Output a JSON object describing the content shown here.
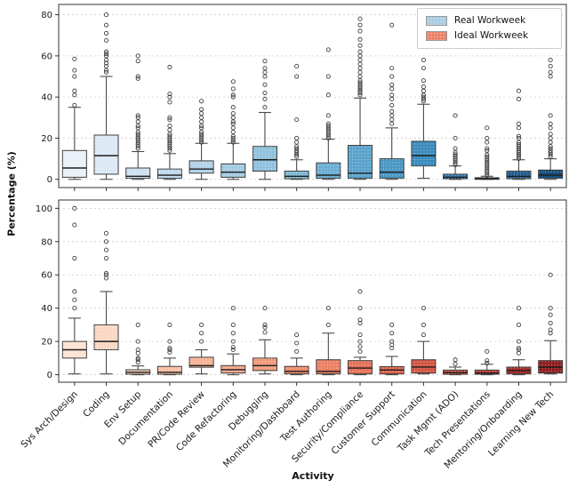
{
  "chart_data": {
    "type": "boxplot",
    "xlabel": "Activity",
    "ylabel": "Percentage (%)",
    "legend": [
      {
        "label": "Real Workweek",
        "color": "#a9cde3"
      },
      {
        "label": "Ideal Workweek",
        "color": "#ee8268"
      }
    ],
    "categories": [
      "Sys Arch/Design",
      "Coding",
      "Env Setup",
      "Documentation",
      "PR/Code Review",
      "Code Refactoring",
      "Debugging",
      "Monitoring/Dashboard",
      "Test Authoring",
      "Security/Compliance",
      "Customer Support",
      "Communication",
      "Task Mgmt (ADO)",
      "Tech Presentations",
      "Mentoring/Onboarding",
      "Learning New Tech"
    ],
    "grid": "dashed-horizontal",
    "legend_position": "top-right",
    "panels": [
      {
        "name": "real-workweek",
        "ylim": [
          -4,
          85
        ],
        "yticks": [
          0,
          20,
          40,
          60,
          80
        ],
        "boxes": [
          {
            "color": "#e9f0f8",
            "whislo": 0,
            "q1": 1,
            "med": 5.5,
            "q3": 14,
            "whishi": 35,
            "fliers": [
              36,
              41,
              43,
              50,
              53,
              58.5
            ]
          },
          {
            "color": "#dce9f5",
            "whislo": 0,
            "q1": 2.5,
            "med": 11.5,
            "q3": 21.5,
            "whishi": 50,
            "fliers": [
              52,
              53,
              55,
              56.5,
              58,
              60,
              61,
              62,
              67.5,
              71,
              75,
              80
            ]
          },
          {
            "color": "#cfe1f1",
            "whislo": 0,
            "q1": 0.5,
            "med": 1.5,
            "q3": 5.5,
            "whishi": 13.5,
            "fliers": [
              15,
              16,
              17,
              18,
              19,
              20,
              21,
              22,
              23,
              25,
              26,
              28,
              30,
              31,
              49,
              50,
              57.5,
              60
            ]
          },
          {
            "color": "#c2d9ec",
            "whislo": 0,
            "q1": 0.5,
            "med": 2,
            "q3": 5,
            "whishi": 12.5,
            "fliers": [
              14,
              15,
              16,
              17,
              18,
              19,
              20,
              21,
              22,
              24,
              26,
              29,
              30,
              37.5,
              40,
              41.5,
              54.5
            ]
          },
          {
            "color": "#b3d2e8",
            "whislo": 0,
            "q1": 3,
            "med": 5,
            "q3": 9,
            "whishi": 17.5,
            "fliers": [
              18,
              19,
              20,
              21,
              22,
              23,
              25,
              26,
              28,
              30,
              32,
              34,
              38
            ]
          },
          {
            "color": "#a3cae3",
            "whislo": 0,
            "q1": 1,
            "med": 3.5,
            "q3": 7.5,
            "whishi": 17.5,
            "fliers": [
              18,
              19,
              20,
              21,
              23,
              25,
              27,
              28,
              30,
              32,
              35,
              40,
              41,
              44,
              47.5
            ]
          },
          {
            "color": "#92c1dd",
            "whislo": 0,
            "q1": 4,
            "med": 9.5,
            "q3": 16,
            "whishi": 32.5,
            "fliers": [
              35,
              39,
              42,
              46,
              50,
              52,
              54,
              57.5
            ]
          },
          {
            "color": "#7fb8d8",
            "whislo": 0,
            "q1": 0.3,
            "med": 1.5,
            "q3": 4,
            "whishi": 9.5,
            "fliers": [
              11,
              12,
              13,
              14,
              15,
              16,
              18,
              20,
              29,
              50,
              55
            ]
          },
          {
            "color": "#6caed3",
            "whislo": 0,
            "q1": 0.5,
            "med": 2,
            "q3": 8,
            "whishi": 19.5,
            "fliers": [
              20,
              21,
              22,
              23,
              24,
              25,
              26,
              27,
              31,
              41,
              50,
              63
            ]
          },
          {
            "color": "#5aa3cc",
            "whislo": 0,
            "q1": 0.5,
            "med": 3,
            "q3": 16.5,
            "whishi": 39.5,
            "fliers": [
              41,
              42,
              43,
              44,
              45,
              46,
              47,
              48,
              50,
              52,
              54,
              56,
              58,
              60,
              62,
              65,
              68,
              72,
              75,
              78
            ]
          },
          {
            "color": "#4997c4",
            "whislo": 0,
            "q1": 0.5,
            "med": 3.5,
            "q3": 10,
            "whishi": 25,
            "fliers": [
              27,
              29,
              31,
              33,
              36,
              39,
              41,
              44,
              46,
              50,
              54,
              75
            ]
          },
          {
            "color": "#3b8bbc",
            "whislo": 0.5,
            "q1": 6.5,
            "med": 11.5,
            "q3": 18.5,
            "whishi": 36.5,
            "fliers": [
              38,
              39,
              40,
              41,
              43,
              45,
              48,
              54,
              58
            ]
          },
          {
            "color": "#2e7ab0",
            "whislo": 0,
            "q1": 0.3,
            "med": 1,
            "q3": 2.5,
            "whishi": 6.5,
            "fliers": [
              7,
              8,
              9,
              10,
              11,
              12,
              13,
              15,
              20,
              31
            ]
          },
          {
            "color": "#256da4",
            "whislo": 0,
            "q1": 0,
            "med": 0.3,
            "q3": 0.8,
            "whishi": 1.5,
            "fliers": [
              2,
              3,
              4,
              5,
              6,
              7,
              8,
              9,
              10,
              11,
              12,
              14,
              15,
              18,
              20,
              25
            ]
          },
          {
            "color": "#1f5f95",
            "whislo": 0,
            "q1": 0.3,
            "med": 1.5,
            "q3": 4,
            "whishi": 9.5,
            "fliers": [
              10,
              11,
              12,
              13,
              14,
              15,
              16,
              17,
              18,
              20,
              21,
              25,
              27,
              39,
              43
            ]
          },
          {
            "color": "#194e7e",
            "whislo": 0,
            "q1": 0.5,
            "med": 2,
            "q3": 4.5,
            "whishi": 10,
            "fliers": [
              11,
              12,
              13,
              14,
              15,
              16,
              18,
              20,
              22,
              25,
              27,
              31,
              50,
              52,
              55,
              58
            ]
          }
        ]
      },
      {
        "name": "ideal-workweek",
        "ylim": [
          -4.5,
          105
        ],
        "yticks": [
          0,
          20,
          40,
          60,
          80,
          100
        ],
        "boxes": [
          {
            "color": "#fbe3d4",
            "whislo": 0.5,
            "q1": 10,
            "med": 15,
            "q3": 20,
            "whishi": 34,
            "fliers": [
              40,
              45,
              50,
              70,
              90,
              100
            ]
          },
          {
            "color": "#fad7c4",
            "whislo": 0.5,
            "q1": 15,
            "med": 20,
            "q3": 30,
            "whishi": 50,
            "fliers": [
              58,
              60,
              61,
              70,
              75,
              80,
              85
            ]
          },
          {
            "color": "#f9ccb4",
            "whislo": 0,
            "q1": 0.3,
            "med": 1.5,
            "q3": 3,
            "whishi": 5.3,
            "fliers": [
              7.5,
              9,
              10,
              13,
              15,
              20,
              30
            ]
          },
          {
            "color": "#f8c0a4",
            "whislo": 0,
            "q1": 0.3,
            "med": 1.5,
            "q3": 5,
            "whishi": 10,
            "fliers": [
              13.5,
              15,
              16,
              20,
              30
            ]
          },
          {
            "color": "#f7b396",
            "whislo": 0.5,
            "q1": 4.5,
            "med": 5.5,
            "q3": 10.5,
            "whishi": 15,
            "fliers": [
              20,
              25,
              30
            ]
          },
          {
            "color": "#f5a688",
            "whislo": 0,
            "q1": 1,
            "med": 3,
            "q3": 5.5,
            "whishi": 12.5,
            "fliers": [
              15,
              16.5,
              20,
              25,
              30,
              40
            ]
          },
          {
            "color": "#f29a7b",
            "whislo": 0.5,
            "q1": 2.5,
            "med": 5.5,
            "q3": 10,
            "whishi": 21,
            "fliers": [
              25.5,
              28.5,
              30,
              40
            ]
          },
          {
            "color": "#ef8d6f",
            "whislo": 0,
            "q1": 0.5,
            "med": 2,
            "q3": 5,
            "whishi": 10,
            "fliers": [
              14,
              19,
              24
            ]
          },
          {
            "color": "#eb8064",
            "whislo": 0,
            "q1": 0.5,
            "med": 2,
            "q3": 9,
            "whishi": 25,
            "fliers": [
              30,
              40
            ]
          },
          {
            "color": "#e57258",
            "whislo": 0,
            "q1": 0.5,
            "med": 4,
            "q3": 8.5,
            "whishi": 10.5,
            "fliers": [
              14,
              17,
              20,
              24,
              31,
              33,
              40,
              50
            ]
          },
          {
            "color": "#dd634c",
            "whislo": 0,
            "q1": 0.5,
            "med": 2.8,
            "q3": 4.9,
            "whishi": 11,
            "fliers": [
              16,
              18,
              20,
              25,
              30
            ]
          },
          {
            "color": "#d35542",
            "whislo": 0.5,
            "q1": 1,
            "med": 4.6,
            "q3": 9,
            "whishi": 20,
            "fliers": [
              24,
              30,
              40
            ]
          },
          {
            "color": "#c74738",
            "whislo": 0,
            "q1": 0.3,
            "med": 1.3,
            "q3": 2.8,
            "whishi": 4.6,
            "fliers": [
              6.5,
              9
            ]
          },
          {
            "color": "#b93a30",
            "whislo": 0,
            "q1": 0.3,
            "med": 1,
            "q3": 2.8,
            "whishi": 6.3,
            "fliers": [
              7,
              8.5,
              14
            ]
          },
          {
            "color": "#a62b28",
            "whislo": 0,
            "q1": 0.5,
            "med": 2.5,
            "q3": 4.6,
            "whishi": 9,
            "fliers": [
              13,
              15,
              16,
              20,
              30,
              40
            ]
          },
          {
            "color": "#8e1d1f",
            "whislo": 0.5,
            "q1": 1,
            "med": 4.5,
            "q3": 8.5,
            "whishi": 20.5,
            "fliers": [
              25,
              27,
              31,
              36,
              40,
              60
            ]
          }
        ]
      }
    ]
  }
}
